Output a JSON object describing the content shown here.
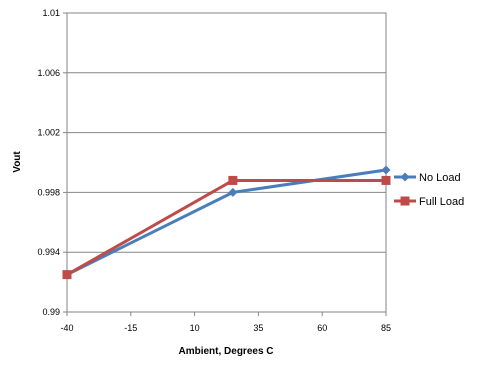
{
  "chart_data": {
    "type": "line",
    "title": "",
    "xlabel": "Ambient, Degrees C",
    "ylabel": "Vout",
    "x_ticks": [
      "-40",
      "-15",
      "10",
      "35",
      "60",
      "85"
    ],
    "y_ticks": [
      "0.99",
      "0.994",
      "0.998",
      "1.002",
      "1.006",
      "1.01"
    ],
    "xlim": [
      -40,
      85
    ],
    "ylim": [
      0.99,
      1.01
    ],
    "grid": "horizontal",
    "legend_position": "right",
    "series": [
      {
        "name": "No Load",
        "color": "#4a7ebb",
        "marker": "diamond",
        "x": [
          -40,
          25,
          85
        ],
        "y": [
          0.9925,
          0.998,
          0.9995
        ]
      },
      {
        "name": "Full Load",
        "color": "#be4b48",
        "marker": "square",
        "x": [
          -40,
          25,
          85
        ],
        "y": [
          0.9925,
          0.9988,
          0.9988
        ]
      }
    ]
  }
}
